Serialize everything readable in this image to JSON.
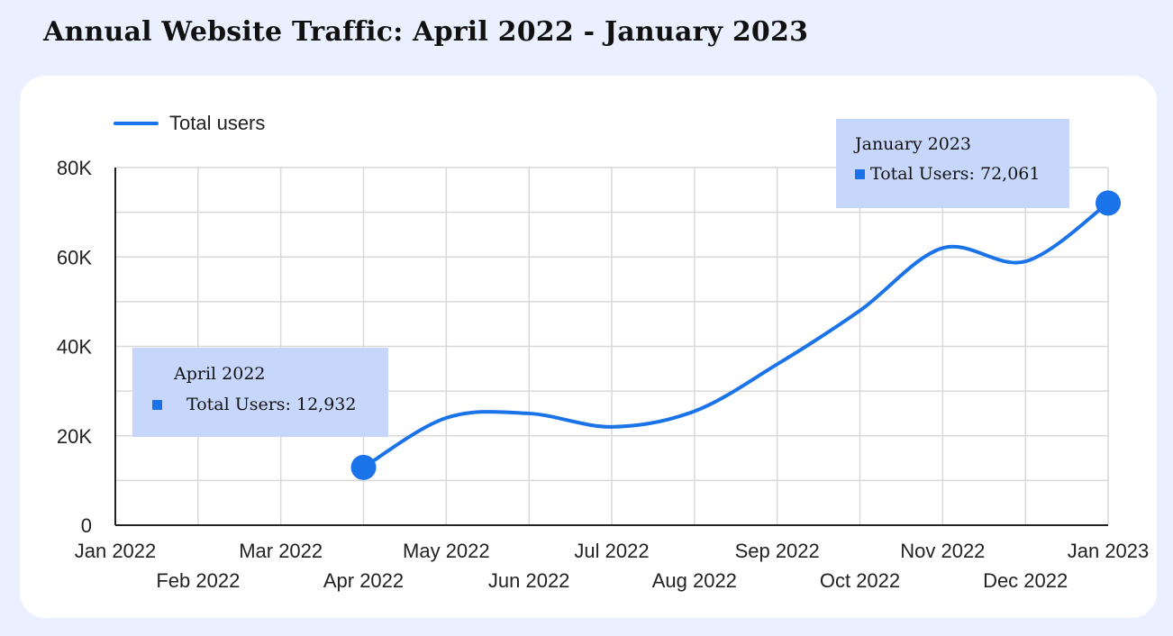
{
  "chart_data": {
    "type": "line",
    "title": "Annual Website Traffic: April 2022 - January 2023",
    "xlabel": "",
    "ylabel": "",
    "ylim": [
      0,
      80000
    ],
    "grid": true,
    "legend": {
      "placement": "top-left",
      "entries": [
        "Total users"
      ]
    },
    "x_ticks": [
      "Jan 2022",
      "Feb 2022",
      "Mar 2022",
      "Apr 2022",
      "May 2022",
      "Jun 2022",
      "Jul 2022",
      "Aug 2022",
      "Sep 2022",
      "Oct 2022",
      "Nov 2022",
      "Dec 2022",
      "Jan 2023"
    ],
    "y_ticks": [
      {
        "value": 0,
        "label": "0"
      },
      {
        "value": 20000,
        "label": "20K"
      },
      {
        "value": 40000,
        "label": "40K"
      },
      {
        "value": 60000,
        "label": "60K"
      },
      {
        "value": 80000,
        "label": "80K"
      }
    ],
    "series": [
      {
        "name": "Total users",
        "color": "#1a73e8",
        "points": [
          {
            "x": "Apr 2022",
            "y": 12932
          },
          {
            "x": "May 2022",
            "y": 24000
          },
          {
            "x": "Jun 2022",
            "y": 25000
          },
          {
            "x": "Jul 2022",
            "y": 22000
          },
          {
            "x": "Aug 2022",
            "y": 25500
          },
          {
            "x": "Sep 2022",
            "y": 36000
          },
          {
            "x": "Oct 2022",
            "y": 48000
          },
          {
            "x": "Nov 2022",
            "y": 62000
          },
          {
            "x": "Dec 2022",
            "y": 59000
          },
          {
            "x": "Jan 2023",
            "y": 72061
          }
        ]
      }
    ],
    "annotations": [
      {
        "x": "Apr 2022",
        "title": "April 2022",
        "text": "Total Users: 12,932"
      },
      {
        "x": "Jan 2023",
        "title": "January 2023",
        "text": "Total Users: 72,061"
      }
    ]
  }
}
